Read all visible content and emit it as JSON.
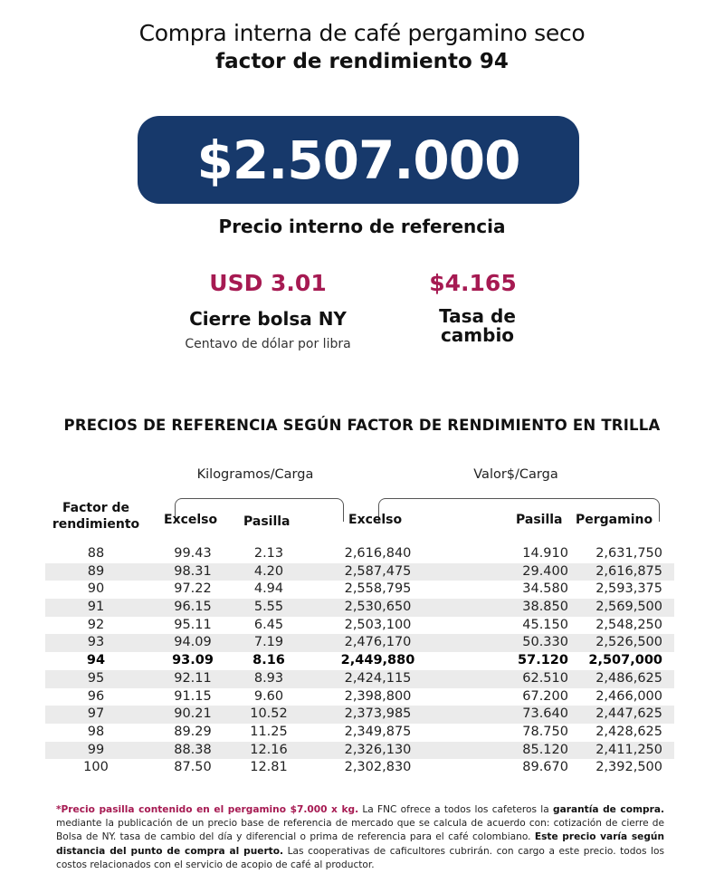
{
  "title": {
    "line1": "Compra interna de café pergamino seco",
    "line2": "factor de rendimiento 94"
  },
  "price": {
    "value": "$2.507.000",
    "label": "Precio interno de referencia"
  },
  "ny": {
    "value": "USD 3.01",
    "label": "Cierre bolsa NY",
    "sub": "Centavo de dólar por libra"
  },
  "fx": {
    "value": "$4.165",
    "label1": "Tasa de",
    "label2": "cambio"
  },
  "colors": {
    "accent": "#a61a52",
    "box": "#17396b"
  },
  "table": {
    "title": "PRECIOS DE REFERENCIA SEGÚN FACTOR DE RENDIMIENTO EN TRILLA",
    "group_kg": "Kilogramos/Carga",
    "group_val": "Valor$/Carga",
    "headers": {
      "factor1": "Factor de",
      "factor2": "rendimiento",
      "excelso_kg": "Excelso",
      "pasilla_kg": "Pasilla",
      "excelso_val": "Excelso",
      "pasilla_val": "Pasilla",
      "pergamino": "Pergamino"
    },
    "rows": [
      [
        "88",
        "99.43",
        "2.13",
        "2,616,840",
        "14.910",
        "2,631,750"
      ],
      [
        "89",
        "98.31",
        "4.20",
        "2,587,475",
        "29.400",
        "2,616,875"
      ],
      [
        "90",
        "97.22",
        "4.94",
        "2,558,795",
        "34.580",
        "2,593,375"
      ],
      [
        "91",
        "96.15",
        "5.55",
        "2,530,650",
        "38.850",
        "2,569,500"
      ],
      [
        "92",
        "95.11",
        "6.45",
        "2,503,100",
        "45.150",
        "2,548,250"
      ],
      [
        "93",
        "94.09",
        "7.19",
        "2,476,170",
        "50.330",
        "2,526,500"
      ],
      [
        "94",
        "93.09",
        "8.16",
        "2,449,880",
        "57.120",
        "2,507,000"
      ],
      [
        "95",
        "92.11",
        "8.93",
        "2,424,115",
        "62.510",
        "2,486,625"
      ],
      [
        "96",
        "91.15",
        "9.60",
        "2,398,800",
        "67.200",
        "2,466,000"
      ],
      [
        "97",
        "90.21",
        "10.52",
        "2,373,985",
        "73.640",
        "2,447,625"
      ],
      [
        "98",
        "89.29",
        "11.25",
        "2,349,875",
        "78.750",
        "2,428,625"
      ],
      [
        "99",
        "88.38",
        "12.16",
        "2,326,130",
        "85.120",
        "2,411,250"
      ],
      [
        "100",
        "87.50",
        "12.81",
        "2,302,830",
        "89.670",
        "2,392,500"
      ]
    ],
    "highlight_factor": "94"
  },
  "footnote": {
    "p1": "*Precio pasilla contenido en el pergamino $7.000 x kg.",
    "p2": " La FNC ofrece a todos los cafeteros la ",
    "p3": "garantía de compra.",
    "p4": " mediante la publicación de un precio base de referencia de mercado que se calcula de acuerdo con: cotización de cierre de Bolsa de NY. tasa de cambio del día y diferencial o prima de referencia para el café colombiano. ",
    "p5": "Este precio varía según distancia del punto de compra al puerto.",
    "p6": " Las cooperativas de caficultores cubrirán. con cargo a este precio. todos los costos relacionados con el servicio de acopio de café al productor."
  }
}
